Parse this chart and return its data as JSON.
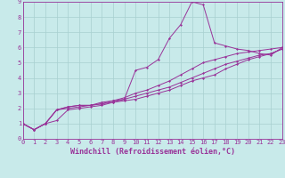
{
  "xlabel": "Windchill (Refroidissement éolien,°C)",
  "ylabel": "",
  "bg_color": "#c8eaea",
  "grid_color": "#a8d0d0",
  "line_color": "#993399",
  "xlim": [
    0,
    23
  ],
  "ylim": [
    0,
    9
  ],
  "xticks": [
    0,
    1,
    2,
    3,
    4,
    5,
    6,
    7,
    8,
    9,
    10,
    11,
    12,
    13,
    14,
    15,
    16,
    17,
    18,
    19,
    20,
    21,
    22,
    23
  ],
  "yticks": [
    0,
    1,
    2,
    3,
    4,
    5,
    6,
    7,
    8,
    9
  ],
  "curve1_x": [
    0,
    1,
    2,
    3,
    4,
    5,
    6,
    7,
    8,
    9,
    10,
    11,
    12,
    13,
    14,
    15,
    16,
    17,
    18,
    19,
    20,
    21,
    22,
    23
  ],
  "curve1_y": [
    1.0,
    0.6,
    1.0,
    1.2,
    1.9,
    2.0,
    2.1,
    2.2,
    2.4,
    2.6,
    4.5,
    4.7,
    5.2,
    6.6,
    7.5,
    9.0,
    8.8,
    6.3,
    6.1,
    5.9,
    5.8,
    5.6,
    5.5,
    6.0
  ],
  "curve2_x": [
    0,
    1,
    2,
    3,
    4,
    5,
    6,
    7,
    8,
    9,
    10,
    11,
    12,
    13,
    14,
    15,
    16,
    17,
    18,
    19,
    20,
    21,
    22,
    23
  ],
  "curve2_y": [
    1.0,
    0.6,
    1.0,
    1.9,
    2.1,
    2.2,
    2.2,
    2.3,
    2.5,
    2.6,
    2.8,
    3.0,
    3.2,
    3.4,
    3.7,
    4.0,
    4.3,
    4.6,
    4.9,
    5.1,
    5.3,
    5.5,
    5.6,
    5.9
  ],
  "curve3_x": [
    0,
    1,
    2,
    3,
    4,
    5,
    6,
    7,
    8,
    9,
    10,
    11,
    12,
    13,
    14,
    15,
    16,
    17,
    18,
    19,
    20,
    21,
    22,
    23
  ],
  "curve3_y": [
    1.0,
    0.6,
    1.0,
    1.9,
    2.1,
    2.2,
    2.2,
    2.4,
    2.5,
    2.7,
    3.0,
    3.2,
    3.5,
    3.8,
    4.2,
    4.6,
    5.0,
    5.2,
    5.4,
    5.6,
    5.7,
    5.8,
    5.9,
    6.0
  ],
  "curve4_x": [
    0,
    1,
    2,
    3,
    4,
    5,
    6,
    7,
    8,
    9,
    10,
    11,
    12,
    13,
    14,
    15,
    16,
    17,
    18,
    19,
    20,
    21,
    22,
    23
  ],
  "curve4_y": [
    1.0,
    0.6,
    1.0,
    1.9,
    2.0,
    2.1,
    2.2,
    2.3,
    2.4,
    2.5,
    2.6,
    2.8,
    3.0,
    3.2,
    3.5,
    3.8,
    4.0,
    4.2,
    4.6,
    4.9,
    5.2,
    5.4,
    5.6,
    5.9
  ],
  "tick_fontsize": 5.0,
  "xlabel_fontsize": 6.0,
  "marker": "D",
  "markersize": 1.5,
  "linewidth": 0.7
}
